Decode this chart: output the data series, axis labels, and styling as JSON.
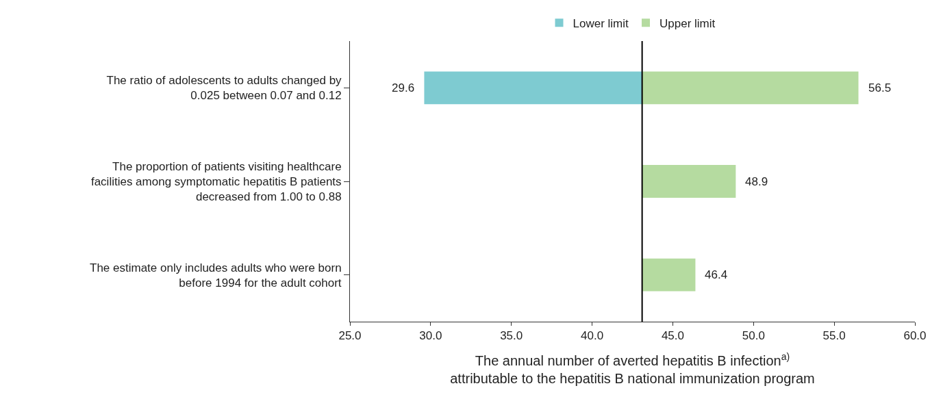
{
  "chart_data": {
    "type": "bar",
    "orientation": "horizontal",
    "stacked": false,
    "xlabel": "The annual number of averted hepatitis B infection$^{a)}$\nattributable to the hepatitis B national immunization program",
    "categories": [
      "The ratio of adolescents to adults changed by 0.025 between 0.07 and 0.12",
      "The proportion of patients visiting healthcare facilities among symptomatic hepatitis B patients decreased from 1.00 to 0.88",
      "The estimate only includes adults who were born before 1994 for the adult cohort"
    ],
    "series": [
      {
        "name": "Lower limit",
        "color": "#7ecbd1",
        "values": [
          13.5,
          null,
          null
        ],
        "base": [
          29.6,
          null,
          null
        ]
      },
      {
        "name": "Upper limit",
        "color": "#b5dba0",
        "values": [
          13.4,
          5.8,
          3.3
        ],
        "base": [
          43.1,
          43.1,
          43.1
        ]
      }
    ],
    "annotations": [
      {
        "text": "29.6",
        "x": 29.6,
        "y": "The ratio of adolescents to adults changed by 0.025 between 0.07 and 0.12"
      },
      {
        "text": "56.5",
        "x": 56.5,
        "y": "The ratio of adolescents to adults changed by 0.025 between 0.07 and 0.12"
      },
      {
        "text": "48.9",
        "x": 48.9,
        "y": "The proportion of patients visiting healthcare facilities among symptomatic hepatitis B patients decreased from 1.00 to 0.88"
      },
      {
        "text": "46.4",
        "x": 46.4,
        "y": "The estimate only includes adults who were born before 1994 for the adult cohort"
      }
    ],
    "xlim": [
      25,
      60
    ],
    "xticks": [
      {
        "value": 25,
        "label": "25.0"
      },
      {
        "value": 30,
        "label": "30.0"
      },
      {
        "value": 35,
        "label": "35.0"
      },
      {
        "value": 40,
        "label": "40.0"
      },
      {
        "value": 45,
        "label": "45.0"
      },
      {
        "value": 50,
        "label": "50.0"
      },
      {
        "value": 55,
        "label": "55.0"
      },
      {
        "value": 60,
        "label": "60.0"
      }
    ],
    "ref_lines": [
      {
        "axis": "x",
        "value": 43.1,
        "color": "#000000"
      }
    ],
    "legend": "top"
  }
}
